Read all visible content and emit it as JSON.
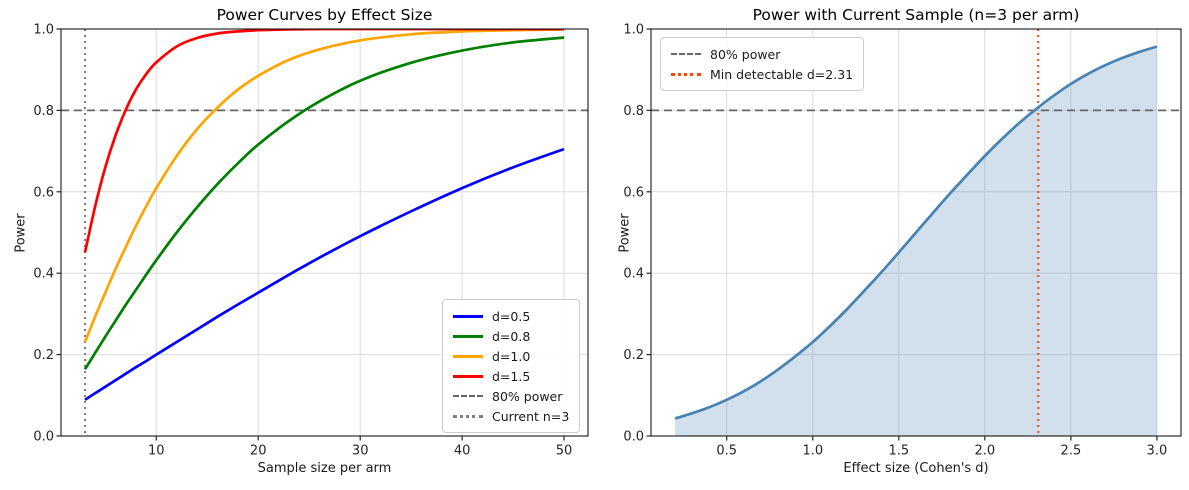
{
  "figure": {
    "background": "#ffffff",
    "text_color": "#1a1a1a",
    "grid_color": "#dcdcdc",
    "spine_color": "#000000"
  },
  "chart_data": [
    {
      "type": "line",
      "title": "Power Curves by Effect Size",
      "xlabel": "Sample size per arm",
      "ylabel": "Power",
      "xlim": [
        0.65,
        52.35
      ],
      "ylim": [
        0,
        1
      ],
      "grid": true,
      "legend_position": "lower right",
      "xtick_values": [
        10,
        20,
        30,
        40,
        50
      ],
      "xtick_labels": [
        "10",
        "20",
        "30",
        "40",
        "50"
      ],
      "ytick_values": [
        0,
        0.2,
        0.4,
        0.6,
        0.8,
        1.0
      ],
      "ytick_labels": [
        "0.0",
        "0.2",
        "0.4",
        "0.6",
        "0.8",
        "1.0"
      ],
      "x": [
        3,
        4,
        5,
        6,
        7,
        8,
        9,
        10,
        12,
        14,
        16,
        18,
        20,
        23,
        26,
        30,
        35,
        40,
        45,
        50
      ],
      "series": [
        {
          "name": "d=0.5",
          "color": "#0000ff",
          "style": "solid",
          "values": [
            0.089,
            0.105,
            0.121,
            0.137,
            0.153,
            0.169,
            0.184,
            0.2,
            0.231,
            0.262,
            0.293,
            0.323,
            0.352,
            0.396,
            0.438,
            0.491,
            0.552,
            0.609,
            0.66,
            0.705
          ]
        },
        {
          "name": "d=0.8",
          "color": "#008000",
          "style": "solid",
          "values": [
            0.164,
            0.204,
            0.244,
            0.283,
            0.322,
            0.359,
            0.396,
            0.432,
            0.5,
            0.562,
            0.619,
            0.67,
            0.716,
            0.774,
            0.822,
            0.873,
            0.917,
            0.947,
            0.967,
            0.979
          ]
        },
        {
          "name": "d=1.0",
          "color": "#ffa500",
          "style": "solid",
          "values": [
            0.231,
            0.293,
            0.352,
            0.41,
            0.464,
            0.516,
            0.564,
            0.609,
            0.688,
            0.754,
            0.807,
            0.851,
            0.885,
            0.924,
            0.95,
            0.972,
            0.987,
            0.994,
            0.997,
            0.999
          ]
        },
        {
          "name": "d=1.5",
          "color": "#ff0000",
          "style": "solid",
          "values": [
            0.451,
            0.564,
            0.66,
            0.738,
            0.801,
            0.851,
            0.889,
            0.918,
            0.957,
            0.978,
            0.989,
            0.994,
            0.997,
            0.999,
            1.0,
            1.0,
            1.0,
            1.0,
            1.0,
            1.0
          ]
        }
      ],
      "ref_lines": [
        {
          "name": "80% power",
          "orientation": "horizontal",
          "value": 0.8,
          "color": "#666666",
          "style": "dashed"
        },
        {
          "name": "Current n=3",
          "orientation": "vertical",
          "value": 3,
          "color": "#808080",
          "style": "dotted"
        }
      ]
    },
    {
      "type": "area",
      "title": "Power with Current Sample (n=3 per arm)",
      "xlabel": "Effect size (Cohen's d)",
      "ylabel": "Power",
      "xlim": [
        0.06,
        3.14
      ],
      "ylim": [
        0,
        1
      ],
      "grid": true,
      "legend_position": "upper left",
      "xtick_values": [
        0.5,
        1.0,
        1.5,
        2.0,
        2.5,
        3.0
      ],
      "xtick_labels": [
        "0.5",
        "1.0",
        "1.5",
        "2.0",
        "2.5",
        "3.0"
      ],
      "ytick_values": [
        0,
        0.2,
        0.4,
        0.6,
        0.8,
        1.0
      ],
      "ytick_labels": [
        "0.0",
        "0.2",
        "0.4",
        "0.6",
        "0.8",
        "1.0"
      ],
      "x": [
        0.2,
        0.3,
        0.4,
        0.5,
        0.6,
        0.7,
        0.8,
        0.9,
        1.0,
        1.1,
        1.2,
        1.3,
        1.4,
        1.5,
        1.6,
        1.7,
        1.8,
        1.9,
        2.0,
        2.1,
        2.2,
        2.3,
        2.4,
        2.5,
        2.6,
        2.7,
        2.8,
        2.9,
        3.0
      ],
      "series": [
        {
          "name": "power-curve",
          "color": "#4682b4",
          "style": "solid",
          "fill": true,
          "fill_opacity": 0.25,
          "values": [
            0.043,
            0.056,
            0.071,
            0.089,
            0.11,
            0.135,
            0.164,
            0.196,
            0.231,
            0.27,
            0.312,
            0.357,
            0.403,
            0.451,
            0.5,
            0.549,
            0.597,
            0.643,
            0.688,
            0.73,
            0.769,
            0.804,
            0.836,
            0.865,
            0.89,
            0.911,
            0.929,
            0.944,
            0.957
          ]
        }
      ],
      "ref_lines": [
        {
          "name": "80% power",
          "orientation": "horizontal",
          "value": 0.8,
          "color": "#666666",
          "style": "dashed"
        },
        {
          "name": "Min detectable d=2.31",
          "orientation": "vertical",
          "value": 2.31,
          "color": "#ff4500",
          "style": "dotted"
        }
      ]
    }
  ]
}
